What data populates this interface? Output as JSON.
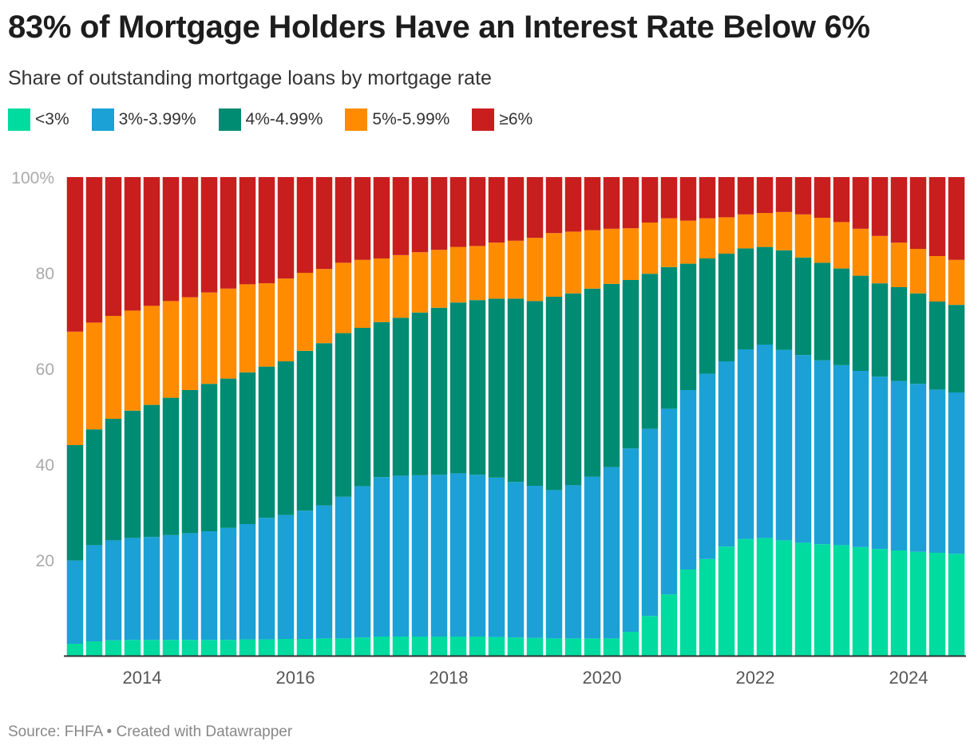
{
  "title": "83% of Mortgage Holders Have an Interest Rate Below 6%",
  "subtitle": "Share of outstanding mortgage loans by mortgage rate",
  "footer": "Source: FHFA • Created with Datawrapper",
  "chart_data": {
    "type": "bar",
    "stacked": true,
    "ylim": [
      0,
      100
    ],
    "y_ticks": [
      "20",
      "40",
      "60",
      "80",
      "100%"
    ],
    "x_ticks": [
      "2014",
      "2016",
      "2018",
      "2020",
      "2022",
      "2024"
    ],
    "grid": false,
    "legend_position": "top-left",
    "categories": [
      "2013 Q1",
      "2013 Q2",
      "2013 Q3",
      "2013 Q4",
      "2014 Q1",
      "2014 Q2",
      "2014 Q3",
      "2014 Q4",
      "2015 Q1",
      "2015 Q2",
      "2015 Q3",
      "2015 Q4",
      "2016 Q1",
      "2016 Q2",
      "2016 Q3",
      "2016 Q4",
      "2017 Q1",
      "2017 Q2",
      "2017 Q3",
      "2017 Q4",
      "2018 Q1",
      "2018 Q2",
      "2018 Q3",
      "2018 Q4",
      "2019 Q1",
      "2019 Q2",
      "2019 Q3",
      "2019 Q4",
      "2020 Q1",
      "2020 Q2",
      "2020 Q3",
      "2020 Q4",
      "2021 Q1",
      "2021 Q2",
      "2021 Q3",
      "2021 Q4",
      "2022 Q1",
      "2022 Q2",
      "2022 Q3",
      "2022 Q4",
      "2023 Q1",
      "2023 Q2",
      "2023 Q3",
      "2023 Q4",
      "2024 Q1",
      "2024 Q2",
      "2024 Q3"
    ],
    "series": [
      {
        "name": "<3%",
        "color": "#00dca0",
        "values": [
          2.5,
          3,
          3.2,
          3.3,
          3.3,
          3.3,
          3.3,
          3.3,
          3.3,
          3.4,
          3.4,
          3.5,
          3.5,
          3.6,
          3.6,
          3.8,
          4,
          4,
          4,
          4,
          4,
          4,
          3.9,
          3.8,
          3.7,
          3.6,
          3.6,
          3.6,
          3.6,
          5,
          8.3,
          12.8,
          18,
          20.2,
          22.8,
          24.4,
          24.6,
          24.1,
          23.6,
          23.3,
          23.1,
          22.7,
          22.3,
          22,
          21.7,
          21.5,
          21.3
        ]
      },
      {
        "name": "3%-3.99%",
        "color": "#1ba1d6",
        "values": [
          17.4,
          20.1,
          20.9,
          21.3,
          21.5,
          21.9,
          22.3,
          22.7,
          23.4,
          24.1,
          25.4,
          25.9,
          26.8,
          27.8,
          29.6,
          31.6,
          33.3,
          33.6,
          33.7,
          33.8,
          34.1,
          33.8,
          33.3,
          32.5,
          31.8,
          31,
          32,
          33.8,
          35.8,
          38.3,
          39.1,
          38.8,
          37.5,
          38.7,
          38.7,
          39.6,
          40.4,
          39.8,
          39.2,
          38.4,
          37.6,
          36.8,
          36,
          35.4,
          35.1,
          34.1,
          33.7
        ]
      },
      {
        "name": "4%-4.99%",
        "color": "#008c73",
        "values": [
          24.1,
          24.2,
          25.4,
          26.6,
          27.6,
          28.7,
          29.9,
          30.8,
          31.2,
          31.7,
          31.6,
          32.1,
          33.4,
          33.9,
          34.2,
          33.1,
          32.4,
          33,
          34,
          34.9,
          35.7,
          36.5,
          37.4,
          38.3,
          38.6,
          40.4,
          40.1,
          39.3,
          38.3,
          35.2,
          32.4,
          29.6,
          26.4,
          24.1,
          22.5,
          21.1,
          20.4,
          20.8,
          20.4,
          20.4,
          20.2,
          19.9,
          19.5,
          19.6,
          18.9,
          18.4,
          18.3
        ]
      },
      {
        "name": "5%-5.99%",
        "color": "#ff8c00",
        "values": [
          23.7,
          22.3,
          21.5,
          20.9,
          20.7,
          20.2,
          19.4,
          19.1,
          18.8,
          18.4,
          17.4,
          17.3,
          16.3,
          15.5,
          14.7,
          14.2,
          13.3,
          13.1,
          12.6,
          12.1,
          11.6,
          11.3,
          11.7,
          12.1,
          13.2,
          13.3,
          12.9,
          12.2,
          11.5,
          10.8,
          10.7,
          10.2,
          9,
          8.4,
          7.6,
          7.1,
          7.1,
          8,
          9,
          9.4,
          9.7,
          9.8,
          9.9,
          9.3,
          9.3,
          9.5,
          9.4
        ]
      },
      {
        "name": "≥6%",
        "color": "#c81e1e",
        "values": [
          32.3,
          30.4,
          29,
          27.9,
          26.9,
          25.9,
          25.1,
          24.1,
          23.3,
          22.4,
          22.2,
          21.2,
          20,
          19.2,
          17.9,
          17.3,
          17,
          16.3,
          15.7,
          15.2,
          14.6,
          14.4,
          13.7,
          13.3,
          12.7,
          11.7,
          11.4,
          11.1,
          10.8,
          10.7,
          9.5,
          8.6,
          9.1,
          8.6,
          8.4,
          7.8,
          7.5,
          7.3,
          7.8,
          8.5,
          9.4,
          10.8,
          12.3,
          13.7,
          15,
          16.5,
          17.3
        ]
      }
    ]
  }
}
